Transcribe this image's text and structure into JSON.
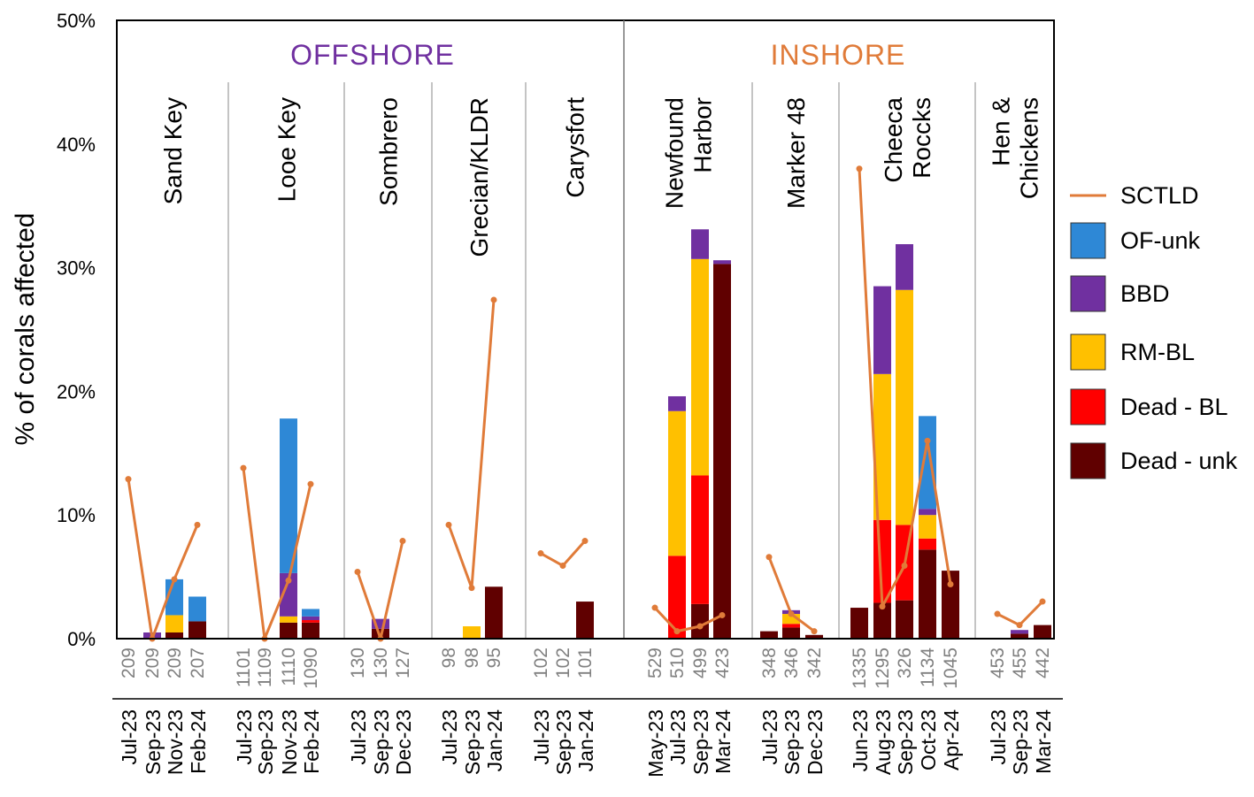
{
  "chart_data": {
    "type": "bar",
    "stacked": true,
    "ylabel": "% of corals affected",
    "ylim": [
      0,
      50
    ],
    "yticks": [
      "0%",
      "10%",
      "20%",
      "30%",
      "40%",
      "50%"
    ],
    "groups_header": [
      {
        "label": "OFFSHORE",
        "color": "#7030A0"
      },
      {
        "label": "INSHORE",
        "color": "#E07B39"
      }
    ],
    "legend": [
      {
        "name": "SCTLD",
        "type": "line",
        "color": "#E07B39"
      },
      {
        "name": "OF-unk",
        "type": "box",
        "color": "#2E88D6"
      },
      {
        "name": "BBD",
        "type": "box",
        "color": "#7030A0"
      },
      {
        "name": "RM-BL",
        "type": "box",
        "color": "#FFC000"
      },
      {
        "name": "Dead - BL",
        "type": "box",
        "color": "#FF0000"
      },
      {
        "name": "Dead - unk",
        "type": "box",
        "color": "#600000"
      }
    ],
    "stack_order": [
      "Dead - unk",
      "Dead - BL",
      "RM-BL",
      "BBD",
      "OF-unk"
    ],
    "sites": [
      {
        "name": [
          "Sand Key"
        ],
        "region": "OFFSHORE",
        "surveys": [
          {
            "date": "Jul-23",
            "n": "209",
            "bars": [
              0,
              0,
              0,
              0,
              0
            ],
            "sctld": 12.9
          },
          {
            "date": "Sep-23",
            "n": "209",
            "bars": [
              0,
              0,
              0,
              0.5,
              0
            ],
            "sctld": 0
          },
          {
            "date": "Nov-23",
            "n": "209",
            "bars": [
              0.5,
              0,
              1.4,
              0,
              2.9
            ],
            "sctld": 4.8
          },
          {
            "date": "Feb-24",
            "n": "207",
            "bars": [
              1.4,
              0,
              0,
              0,
              2.0
            ],
            "sctld": 9.2
          }
        ]
      },
      {
        "name": [
          "Looe Key"
        ],
        "region": "OFFSHORE",
        "surveys": [
          {
            "date": "Jul-23",
            "n": "1101",
            "bars": [
              0,
              0,
              0,
              0,
              0
            ],
            "sctld": 13.8
          },
          {
            "date": "Sep-23",
            "n": "1109",
            "bars": [
              0,
              0,
              0,
              0,
              0
            ],
            "sctld": 0
          },
          {
            "date": "Nov-23",
            "n": "1110",
            "bars": [
              1.3,
              0,
              0.5,
              3.5,
              12.5
            ],
            "sctld": 4.7
          },
          {
            "date": "Feb-24",
            "n": "1090",
            "bars": [
              1.3,
              0.2,
              0,
              0.3,
              0.6
            ],
            "sctld": 12.5
          }
        ]
      },
      {
        "name": [
          "Sombrero"
        ],
        "region": "OFFSHORE",
        "surveys": [
          {
            "date": "Jul-23",
            "n": "130",
            "bars": [
              0,
              0,
              0,
              0,
              0
            ],
            "sctld": 5.4
          },
          {
            "date": "Sep-23",
            "n": "130",
            "bars": [
              0.8,
              0,
              0,
              0.8,
              0
            ],
            "sctld": 0
          },
          {
            "date": "Dec-23",
            "n": "127",
            "bars": [
              0,
              0,
              0,
              0,
              0
            ],
            "sctld": 7.9
          }
        ]
      },
      {
        "name": [
          "Grecian/KLDR"
        ],
        "region": "OFFSHORE",
        "surveys": [
          {
            "date": "Jul-23",
            "n": "98",
            "bars": [
              0,
              0,
              0,
              0,
              0
            ],
            "sctld": 9.2
          },
          {
            "date": "Sep-23",
            "n": "98",
            "bars": [
              0,
              0,
              1.0,
              0,
              0
            ],
            "sctld": 4.1
          },
          {
            "date": "Jan-24",
            "n": "95",
            "bars": [
              4.2,
              0,
              0,
              0,
              0
            ],
            "sctld": 27.4
          }
        ]
      },
      {
        "name": [
          "Carysfort"
        ],
        "region": "OFFSHORE",
        "surveys": [
          {
            "date": "Jul-23",
            "n": "102",
            "bars": [
              0,
              0,
              0,
              0,
              0
            ],
            "sctld": 6.9
          },
          {
            "date": "Sep-23",
            "n": "102",
            "bars": [
              0,
              0,
              0,
              0,
              0
            ],
            "sctld": 5.9
          },
          {
            "date": "Jan-24",
            "n": "101",
            "bars": [
              3.0,
              0,
              0,
              0,
              0
            ],
            "sctld": 7.9
          }
        ]
      },
      {
        "name": [
          "Newfound",
          "Harbor"
        ],
        "region": "INSHORE",
        "surveys": [
          {
            "date": "May-23",
            "n": "529",
            "bars": [
              0,
              0,
              0,
              0,
              0
            ],
            "sctld": 2.5
          },
          {
            "date": "Jul-23",
            "n": "510",
            "bars": [
              0,
              6.7,
              11.7,
              1.2,
              0
            ],
            "sctld": 0.6
          },
          {
            "date": "Sep-23",
            "n": "499",
            "bars": [
              2.8,
              10.4,
              17.5,
              2.4,
              0
            ],
            "sctld": 1.0
          },
          {
            "date": "Mar-24",
            "n": "423",
            "bars": [
              30.3,
              0,
              0,
              0.3,
              0
            ],
            "sctld": 1.9
          }
        ]
      },
      {
        "name": [
          "Marker 48"
        ],
        "region": "INSHORE",
        "surveys": [
          {
            "date": "Jul-23",
            "n": "348",
            "bars": [
              0.6,
              0,
              0,
              0,
              0
            ],
            "sctld": 6.6
          },
          {
            "date": "Sep-23",
            "n": "346",
            "bars": [
              0.9,
              0.3,
              0.8,
              0.3,
              0
            ],
            "sctld": 2.0
          },
          {
            "date": "Dec-23",
            "n": "342",
            "bars": [
              0.3,
              0,
              0,
              0,
              0
            ],
            "sctld": 0.6
          }
        ]
      },
      {
        "name": [
          "Cheeca",
          "Roccks"
        ],
        "region": "INSHORE",
        "surveys": [
          {
            "date": "Jun-23",
            "n": "1335",
            "bars": [
              2.5,
              0,
              0,
              0,
              0
            ],
            "sctld": 38.0
          },
          {
            "date": "Aug-23",
            "n": "1295",
            "bars": [
              2.9,
              6.7,
              11.8,
              7.1,
              0
            ],
            "sctld": 2.6
          },
          {
            "date": "Sep-23",
            "n": "326",
            "bars": [
              3.1,
              6.1,
              19.0,
              3.7,
              0
            ],
            "sctld": 5.9
          },
          {
            "date": "Oct-23",
            "n": "1134",
            "bars": [
              7.2,
              0.9,
              1.9,
              0.5,
              7.5
            ],
            "sctld": 16.0
          },
          {
            "date": "Apr-24",
            "n": "1045",
            "bars": [
              5.5,
              0,
              0,
              0,
              0
            ],
            "sctld": 4.4
          }
        ]
      },
      {
        "name": [
          "Hen &",
          "Chickens"
        ],
        "region": "INSHORE",
        "surveys": [
          {
            "date": "Jul-23",
            "n": "453",
            "bars": [
              0,
              0,
              0,
              0,
              0
            ],
            "sctld": 2.0
          },
          {
            "date": "Sep-23",
            "n": "455",
            "bars": [
              0.4,
              0,
              0,
              0.3,
              0
            ],
            "sctld": 1.1
          },
          {
            "date": "Mar-24",
            "n": "442",
            "bars": [
              1.1,
              0,
              0,
              0,
              0
            ],
            "sctld": 3.0
          }
        ]
      }
    ]
  }
}
